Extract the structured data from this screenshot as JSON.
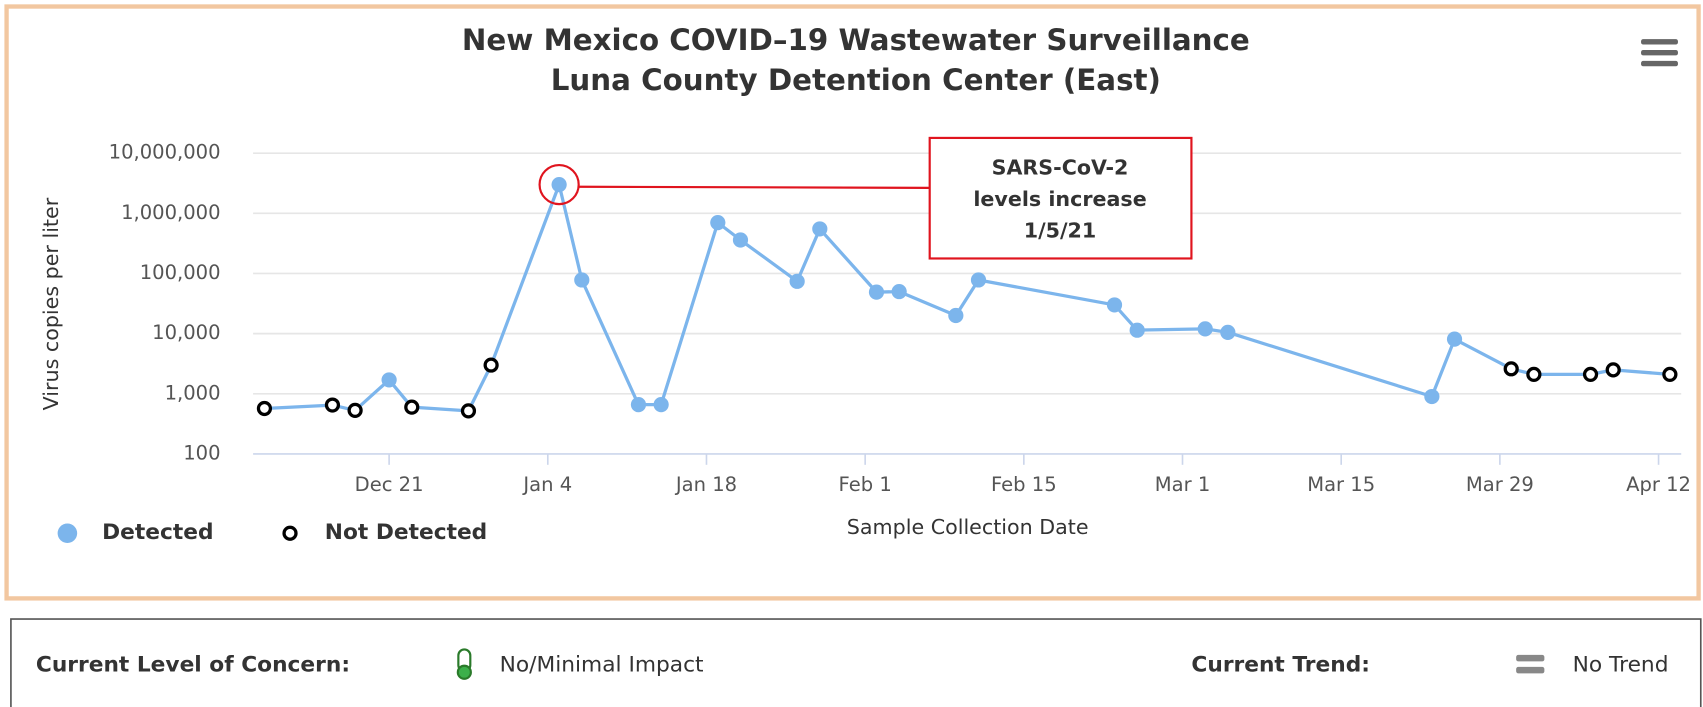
{
  "chart_data": {
    "type": "line",
    "title": "New Mexico COVID–19 Wastewater Surveillance",
    "subtitle": "Luna County Detention Center (East)",
    "y_label": "Virus copies per liter",
    "x_label": "Sample Collection Date",
    "log_y": true,
    "grid": true,
    "legend": "bottom-left",
    "line_color": "#7cb5ec",
    "x": [
      "Dec 10",
      "Dec 16",
      "Dec 18",
      "Dec 21",
      "Dec 23",
      "Dec 28",
      "Dec 30",
      "Jan 5",
      "Jan 7",
      "Jan 12",
      "Jan 14",
      "Jan 19",
      "Jan 21",
      "Jan 26",
      "Jan 28",
      "Feb 2",
      "Feb 4",
      "Feb 9",
      "Feb 11",
      "Feb 23",
      "Feb 25",
      "Mar 3",
      "Mar 5",
      "Mar 23",
      "Mar 25",
      "Mar 30",
      "Apr 1",
      "Apr 6",
      "Apr 8",
      "Apr 13"
    ],
    "series": [
      {
        "name": "Detected",
        "color": "#7cb5ec",
        "values": [
          null,
          null,
          null,
          1700,
          null,
          null,
          null,
          3000000,
          78000,
          660,
          660,
          700000,
          360000,
          74000,
          550000,
          49000,
          50000,
          20000,
          78000,
          30000,
          11400,
          12000,
          10500,
          900,
          8100,
          null,
          null,
          null,
          null,
          null
        ]
      },
      {
        "name": "Not Detected",
        "color": "#000000",
        "values": [
          570,
          650,
          530,
          null,
          600,
          520,
          3000,
          null,
          null,
          null,
          null,
          null,
          null,
          null,
          null,
          null,
          null,
          null,
          null,
          null,
          null,
          null,
          null,
          null,
          null,
          2600,
          2100,
          2100,
          2500,
          2100
        ]
      }
    ],
    "xlim": [
      "Dec 9",
      "Apr 14"
    ],
    "xticks": [
      "Dec 21",
      "Jan 4",
      "Jan 18",
      "Feb 1",
      "Feb 15",
      "Mar 1",
      "Mar 15",
      "Mar 29",
      "Apr 12"
    ],
    "ylim": [
      100,
      10000000
    ],
    "yticks": [
      100,
      {
        "value": 1000,
        "label": "1,000"
      },
      {
        "value": 10000,
        "label": "10,000"
      },
      {
        "value": 100000,
        "label": "100,000"
      },
      {
        "value": 1000000,
        "label": "1,000,000"
      },
      {
        "value": 10000000,
        "label": "10,000,000"
      }
    ],
    "annotation": {
      "lines": [
        "SARS-CoV-2",
        "levels increase",
        "1/5/21"
      ],
      "color": "#e0141e"
    }
  },
  "status_panel": {
    "level_label": "Current Level of Concern:",
    "level": "No/Minimal Impact",
    "trend_label": "Current Trend:",
    "trend": "No Trend"
  }
}
